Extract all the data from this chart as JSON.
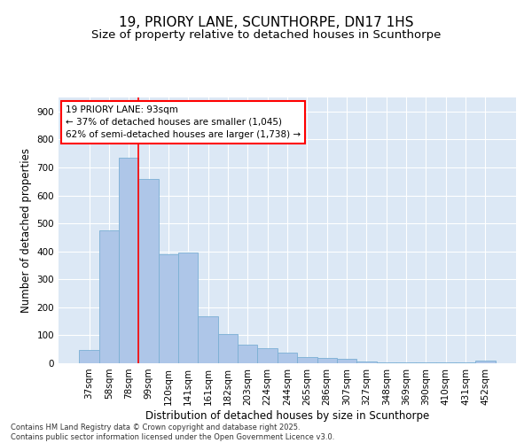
{
  "title_line1": "19, PRIORY LANE, SCUNTHORPE, DN17 1HS",
  "title_line2": "Size of property relative to detached houses in Scunthorpe",
  "xlabel": "Distribution of detached houses by size in Scunthorpe",
  "ylabel": "Number of detached properties",
  "categories": [
    "37sqm",
    "58sqm",
    "78sqm",
    "99sqm",
    "120sqm",
    "141sqm",
    "161sqm",
    "182sqm",
    "203sqm",
    "224sqm",
    "244sqm",
    "265sqm",
    "286sqm",
    "307sqm",
    "327sqm",
    "348sqm",
    "369sqm",
    "390sqm",
    "410sqm",
    "431sqm",
    "452sqm"
  ],
  "values": [
    47,
    475,
    735,
    660,
    390,
    395,
    167,
    105,
    68,
    55,
    38,
    22,
    18,
    15,
    5,
    4,
    4,
    4,
    4,
    4,
    8
  ],
  "bar_color": "#aec6e8",
  "bar_edge_color": "#7aafd4",
  "vline_x": 2.5,
  "vline_color": "red",
  "annotation_text": "19 PRIORY LANE: 93sqm\n← 37% of detached houses are smaller (1,045)\n62% of semi-detached houses are larger (1,738) →",
  "annotation_box_color": "white",
  "annotation_box_edge_color": "red",
  "ylim": [
    0,
    950
  ],
  "yticks": [
    0,
    100,
    200,
    300,
    400,
    500,
    600,
    700,
    800,
    900
  ],
  "background_color": "#dce8f5",
  "footer_text": "Contains HM Land Registry data © Crown copyright and database right 2025.\nContains public sector information licensed under the Open Government Licence v3.0.",
  "title_fontsize": 11,
  "subtitle_fontsize": 9.5,
  "axis_label_fontsize": 8.5,
  "tick_fontsize": 7.5,
  "footer_fontsize": 6.0
}
